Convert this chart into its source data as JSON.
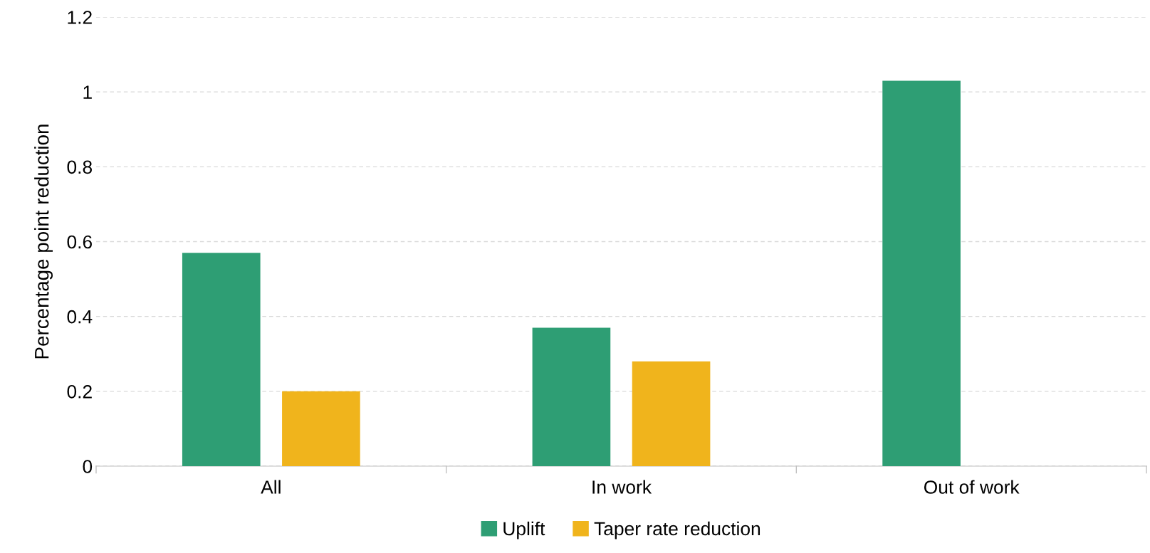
{
  "chart_data": {
    "type": "bar",
    "ylabel": "Percentage point reduction",
    "categories": [
      "All",
      "In work",
      "Out of work"
    ],
    "series": [
      {
        "name": "Uplift",
        "color": "#2e9e74",
        "values": [
          0.57,
          0.37,
          1.03
        ]
      },
      {
        "name": "Taper rate reduction",
        "color": "#f0b41c",
        "values": [
          0.2,
          0.28,
          null
        ]
      }
    ],
    "ylim": [
      0,
      1.2
    ],
    "yticks": [
      0,
      0.2,
      0.4,
      0.6,
      0.8,
      1,
      1.2
    ],
    "grid": "y",
    "legend": "bottom"
  }
}
